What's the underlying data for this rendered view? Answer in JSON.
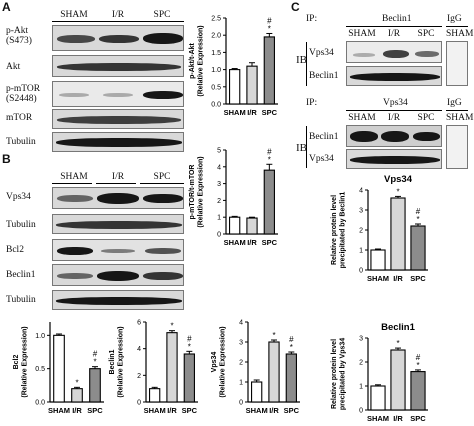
{
  "panels": {
    "a": "A",
    "b": "B",
    "c": "C"
  },
  "groups": [
    "SHAM",
    "I/R",
    "SPC"
  ],
  "panel_a": {
    "blot_labels": [
      "p-Akt\n(S473)",
      "Akt",
      "p-mTOR\n(S2448)",
      "mTOR",
      "Tubulin"
    ]
  },
  "panel_b": {
    "blot_labels": [
      "Vps34",
      "Tubulin",
      "Bcl2",
      "Beclin1",
      "Tubulin"
    ]
  },
  "panel_c": {
    "ip_label": "IP:",
    "ib_label": "IB",
    "igg": "IgG",
    "igg_lane": "SHAM",
    "block1": {
      "ip": "Beclin1",
      "rows": [
        "Vps34",
        "Beclin1"
      ]
    },
    "block2": {
      "ip": "Vps34",
      "rows": [
        "Beclin1",
        "Vps34"
      ]
    }
  },
  "chart_data": [
    {
      "type": "bar",
      "id": "pakt",
      "categories": [
        "SHAM",
        "I/R",
        "SPC"
      ],
      "values": [
        1.0,
        1.1,
        1.95
      ],
      "errors": [
        0.03,
        0.1,
        0.1
      ],
      "ylabel": "p-Akt/t-Akt\n(Relative Expression)",
      "ylim": [
        0,
        2.5
      ],
      "yticks": [
        "0.0",
        "0.5",
        "1.0",
        "1.5",
        "2.0",
        "2.5"
      ],
      "annotations": [
        "",
        "",
        "#\n*"
      ],
      "colors": [
        "#ffffff",
        "#d7d7d7",
        "#8c8c8c"
      ]
    },
    {
      "type": "bar",
      "id": "pmtor",
      "categories": [
        "SHAM",
        "I/R",
        "SPC"
      ],
      "values": [
        1.0,
        0.95,
        3.8
      ],
      "errors": [
        0.05,
        0.05,
        0.35
      ],
      "ylabel": "p-mTOR/t-mTOR\n(Relative Expression)",
      "ylim": [
        0,
        5
      ],
      "yticks": [
        "0",
        "1",
        "2",
        "3",
        "4",
        "5"
      ],
      "annotations": [
        "",
        "",
        "#\n*"
      ],
      "colors": [
        "#ffffff",
        "#d7d7d7",
        "#8c8c8c"
      ]
    },
    {
      "type": "bar",
      "id": "bcl2",
      "categories": [
        "SHAM",
        "I/R",
        "SPC"
      ],
      "values": [
        1.0,
        0.2,
        0.5
      ],
      "errors": [
        0.02,
        0.02,
        0.03
      ],
      "ylabel": "Bcl2\n(Relative Expression)",
      "ylim": [
        0,
        1.2
      ],
      "yticks": [
        "0.0",
        "0.5",
        "1.0"
      ],
      "annotations": [
        "",
        "*",
        "#\n*"
      ],
      "colors": [
        "#ffffff",
        "#d7d7d7",
        "#8c8c8c"
      ]
    },
    {
      "type": "bar",
      "id": "beclin1",
      "categories": [
        "SHAM",
        "I/R",
        "SPC"
      ],
      "values": [
        1.0,
        5.2,
        3.6
      ],
      "errors": [
        0.1,
        0.15,
        0.2
      ],
      "ylabel": "Beclin1\n(Relative Expression)",
      "ylim": [
        0,
        6
      ],
      "yticks": [
        "0",
        "2",
        "4",
        "6"
      ],
      "annotations": [
        "",
        "*",
        "#\n*"
      ],
      "colors": [
        "#ffffff",
        "#d7d7d7",
        "#8c8c8c"
      ]
    },
    {
      "type": "bar",
      "id": "vps34",
      "categories": [
        "SHAM",
        "I/R",
        "SPC"
      ],
      "values": [
        1.0,
        3.0,
        2.4
      ],
      "errors": [
        0.1,
        0.1,
        0.1
      ],
      "ylabel": "Vps34\n(Relative Expression)",
      "ylim": [
        0,
        4
      ],
      "yticks": [
        "0",
        "1",
        "2",
        "3",
        "4"
      ],
      "annotations": [
        "",
        "*",
        "#\n*"
      ],
      "colors": [
        "#ffffff",
        "#d7d7d7",
        "#8c8c8c"
      ]
    },
    {
      "type": "bar",
      "id": "c_vps34",
      "title": "Vps34",
      "categories": [
        "SHAM",
        "I/R",
        "SPC"
      ],
      "values": [
        1.0,
        3.6,
        2.2
      ],
      "errors": [
        0.05,
        0.08,
        0.1
      ],
      "ylabel": "Relative protein level\nprecipitated by Beclin1",
      "ylim": [
        0,
        4
      ],
      "yticks": [
        "0",
        "1",
        "2",
        "3",
        "4"
      ],
      "annotations": [
        "",
        "*",
        "#\n*"
      ],
      "colors": [
        "#ffffff",
        "#d7d7d7",
        "#8c8c8c"
      ]
    },
    {
      "type": "bar",
      "id": "c_beclin1",
      "title": "Beclin1",
      "categories": [
        "SHAM",
        "I/R",
        "SPC"
      ],
      "values": [
        1.0,
        2.5,
        1.6
      ],
      "errors": [
        0.05,
        0.08,
        0.07
      ],
      "ylabel": "Relative protein level\nprecipitated by Vps34",
      "ylim": [
        0,
        3
      ],
      "yticks": [
        "0",
        "1",
        "2",
        "3"
      ],
      "annotations": [
        "",
        "*",
        "#\n*"
      ],
      "colors": [
        "#ffffff",
        "#d7d7d7",
        "#8c8c8c"
      ]
    }
  ]
}
